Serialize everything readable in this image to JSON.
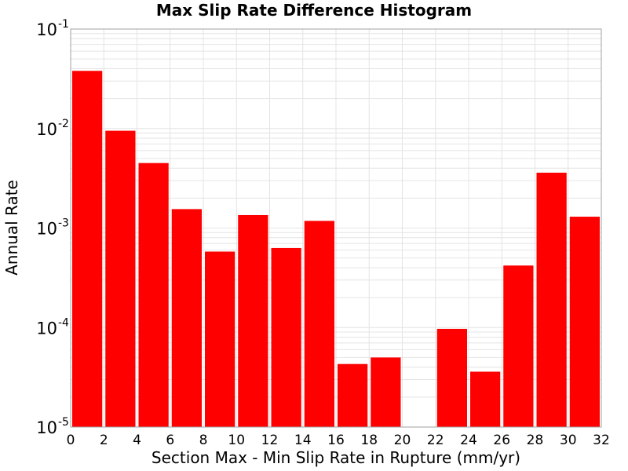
{
  "chart_data": {
    "type": "bar",
    "title": "Max Slip Rate Difference Histogram",
    "xlabel": "Section Max - Min Slip Rate in Rupture (mm/yr)",
    "ylabel": "Annual Rate",
    "y_scale": "log",
    "xlim": [
      0,
      32
    ],
    "ylim": [
      1e-05,
      0.1
    ],
    "x_ticks": [
      "0",
      "2",
      "4",
      "6",
      "8",
      "10",
      "12",
      "14",
      "16",
      "18",
      "20",
      "22",
      "24",
      "26",
      "28",
      "30",
      "32"
    ],
    "y_ticks": [
      {
        "base": "10",
        "exp": "-5"
      },
      {
        "base": "10",
        "exp": "-4"
      },
      {
        "base": "10",
        "exp": "-3"
      },
      {
        "base": "10",
        "exp": "-2"
      },
      {
        "base": "10",
        "exp": "-1"
      }
    ],
    "bin_width": 2,
    "bins": [
      {
        "x_start": 0,
        "value": 0.038
      },
      {
        "x_start": 2,
        "value": 0.0095
      },
      {
        "x_start": 4,
        "value": 0.0045
      },
      {
        "x_start": 6,
        "value": 0.00155
      },
      {
        "x_start": 8,
        "value": 0.00058
      },
      {
        "x_start": 10,
        "value": 0.00135
      },
      {
        "x_start": 12,
        "value": 0.00063
      },
      {
        "x_start": 14,
        "value": 0.00118
      },
      {
        "x_start": 16,
        "value": 4.3e-05
      },
      {
        "x_start": 18,
        "value": 5e-05
      },
      {
        "x_start": 20,
        "value": 0
      },
      {
        "x_start": 22,
        "value": 9.7e-05
      },
      {
        "x_start": 24,
        "value": 3.6e-05
      },
      {
        "x_start": 26,
        "value": 0.00042
      },
      {
        "x_start": 28,
        "value": 0.0036
      },
      {
        "x_start": 30,
        "value": 0.0013
      }
    ],
    "bar_color": "#ff0000",
    "grid": true,
    "grid_color": "#e4e4e4"
  }
}
